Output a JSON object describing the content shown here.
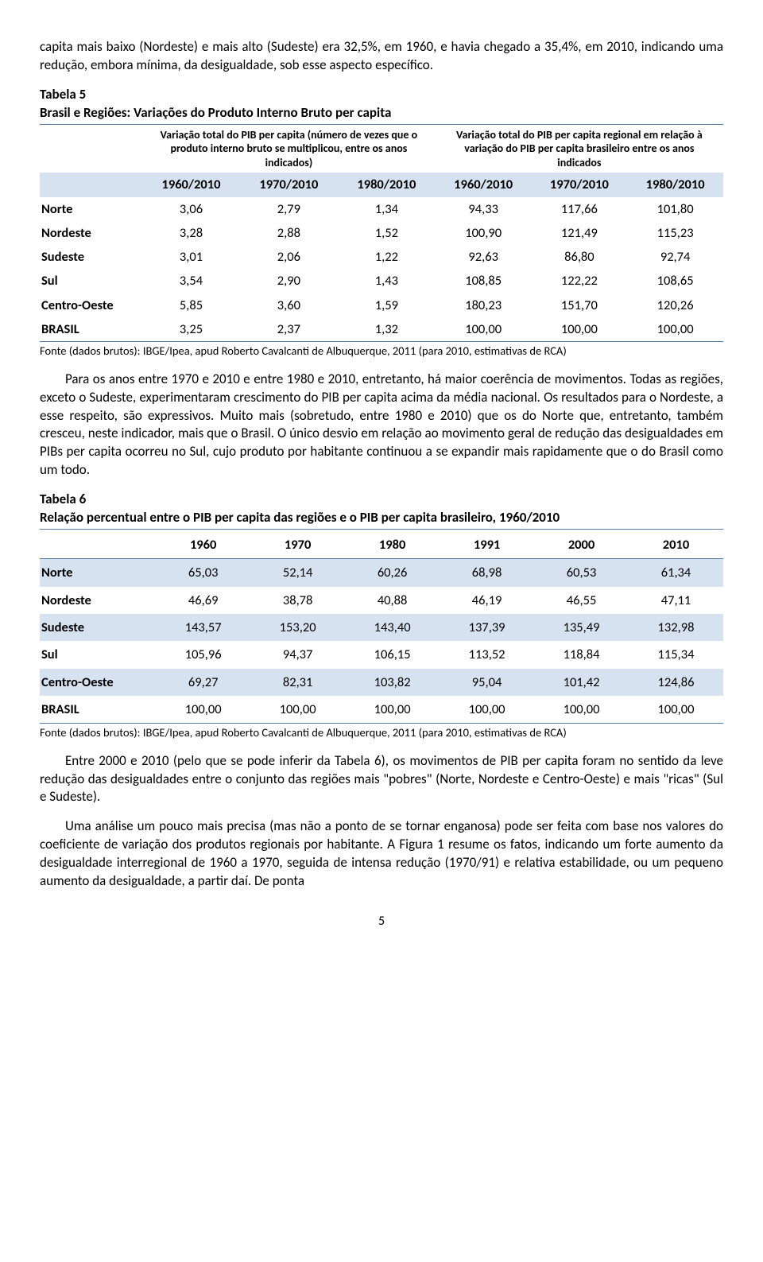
{
  "intro_paragraph": "capita mais baixo (Nordeste) e mais alto (Sudeste) era 32,5%, em 1960, e havia chegado a 35,4%, em 2010, indicando uma redução, embora mínima, da desigualdade, sob esse aspecto específico.",
  "table5": {
    "label": "Tabela 5",
    "title": "Brasil e Regiões: Variações do Produto Interno Bruto per capita",
    "group_header_left": "Variação total do PIB per capita (número de vezes que o produto interno bruto se multiplicou, entre os anos indicados)",
    "group_header_right": "Variação total do PIB per capita regional em relação à variação do PIB per capita brasileiro entre os anos indicados",
    "col_headers": [
      "1960/2010",
      "1970/2010",
      "1980/2010",
      "1960/2010",
      "1970/2010",
      "1980/2010"
    ],
    "rows": [
      {
        "label": "Norte",
        "cells": [
          "3,06",
          "2,79",
          "1,34",
          "94,33",
          "117,66",
          "101,80"
        ]
      },
      {
        "label": "Nordeste",
        "cells": [
          "3,28",
          "2,88",
          "1,52",
          "100,90",
          "121,49",
          "115,23"
        ]
      },
      {
        "label": "Sudeste",
        "cells": [
          "3,01",
          "2,06",
          "1,22",
          "92,63",
          "86,80",
          "92,74"
        ]
      },
      {
        "label": "Sul",
        "cells": [
          "3,54",
          "2,90",
          "1,43",
          "108,85",
          "122,22",
          "108,65"
        ]
      },
      {
        "label": "Centro-Oeste",
        "cells": [
          "5,85",
          "3,60",
          "1,59",
          "180,23",
          "151,70",
          "120,26"
        ]
      },
      {
        "label": "BRASIL",
        "cells": [
          "3,25",
          "2,37",
          "1,32",
          "100,00",
          "100,00",
          "100,00"
        ]
      }
    ],
    "source": "Fonte (dados brutos): IBGE/Ipea, apud Roberto Cavalcanti de Albuquerque, 2011 (para 2010, estimativas de RCA)"
  },
  "mid_paragraph": "Para os anos entre 1970 e 2010 e entre 1980 e 2010, entretanto, há maior coerência de movimentos. Todas as regiões, exceto o Sudeste, experimentaram crescimento do PIB per capita acima da média nacional. Os resultados para o Nordeste, a esse respeito, são expressivos. Muito mais (sobretudo, entre 1980 e 2010) que os do Norte que, entretanto, também cresceu, neste indicador, mais que o Brasil. O único desvio em relação ao movimento geral de redução das desigualdades em PIBs per capita ocorreu no Sul, cujo produto por habitante continuou a se expandir mais rapidamente que o do Brasil como um todo.",
  "table6": {
    "label": "Tabela 6",
    "title": "Relação percentual entre o PIB per capita das regiões e o PIB per capita brasileiro, 1960/2010",
    "col_headers": [
      "1960",
      "1970",
      "1980",
      "1991",
      "2000",
      "2010"
    ],
    "rows": [
      {
        "label": "Norte",
        "cells": [
          "65,03",
          "52,14",
          "60,26",
          "68,98",
          "60,53",
          "61,34"
        ],
        "shade": true
      },
      {
        "label": "Nordeste",
        "cells": [
          "46,69",
          "38,78",
          "40,88",
          "46,19",
          "46,55",
          "47,11"
        ],
        "shade": false
      },
      {
        "label": "Sudeste",
        "cells": [
          "143,57",
          "153,20",
          "143,40",
          "137,39",
          "135,49",
          "132,98"
        ],
        "shade": true
      },
      {
        "label": "Sul",
        "cells": [
          "105,96",
          "94,37",
          "106,15",
          "113,52",
          "118,84",
          "115,34"
        ],
        "shade": false
      },
      {
        "label": "Centro-Oeste",
        "cells": [
          "69,27",
          "82,31",
          "103,82",
          "95,04",
          "101,42",
          "124,86"
        ],
        "shade": true
      },
      {
        "label": "BRASIL",
        "cells": [
          "100,00",
          "100,00",
          "100,00",
          "100,00",
          "100,00",
          "100,00"
        ],
        "shade": false
      }
    ],
    "source": "Fonte (dados brutos): IBGE/Ipea, apud Roberto Cavalcanti de Albuquerque, 2011 (para 2010, estimativas de RCA)"
  },
  "para_after_t6_1": "Entre 2000 e 2010 (pelo que se pode inferir da Tabela 6), os movimentos de PIB per capita foram no sentido da leve redução das desigualdades entre o conjunto das regiões mais \"pobres\" (Norte, Nordeste e Centro-Oeste) e mais \"ricas\" (Sul e Sudeste).",
  "para_after_t6_2": "Uma análise um pouco mais precisa (mas não a ponto de se tornar enganosa) pode ser feita com base nos valores do coeficiente de variação dos produtos regionais por habitante. A Figura 1 resume os fatos, indicando um forte aumento da desigualdade interregional de 1960 a 1970, seguida de intensa redução (1970/91) e relativa estabilidade, ou um pequeno aumento da desigualdade, a partir daí. De ponta",
  "page_number": "5",
  "colors": {
    "shade_bg": "#d6e2ef",
    "border": "#5b7ca0"
  }
}
